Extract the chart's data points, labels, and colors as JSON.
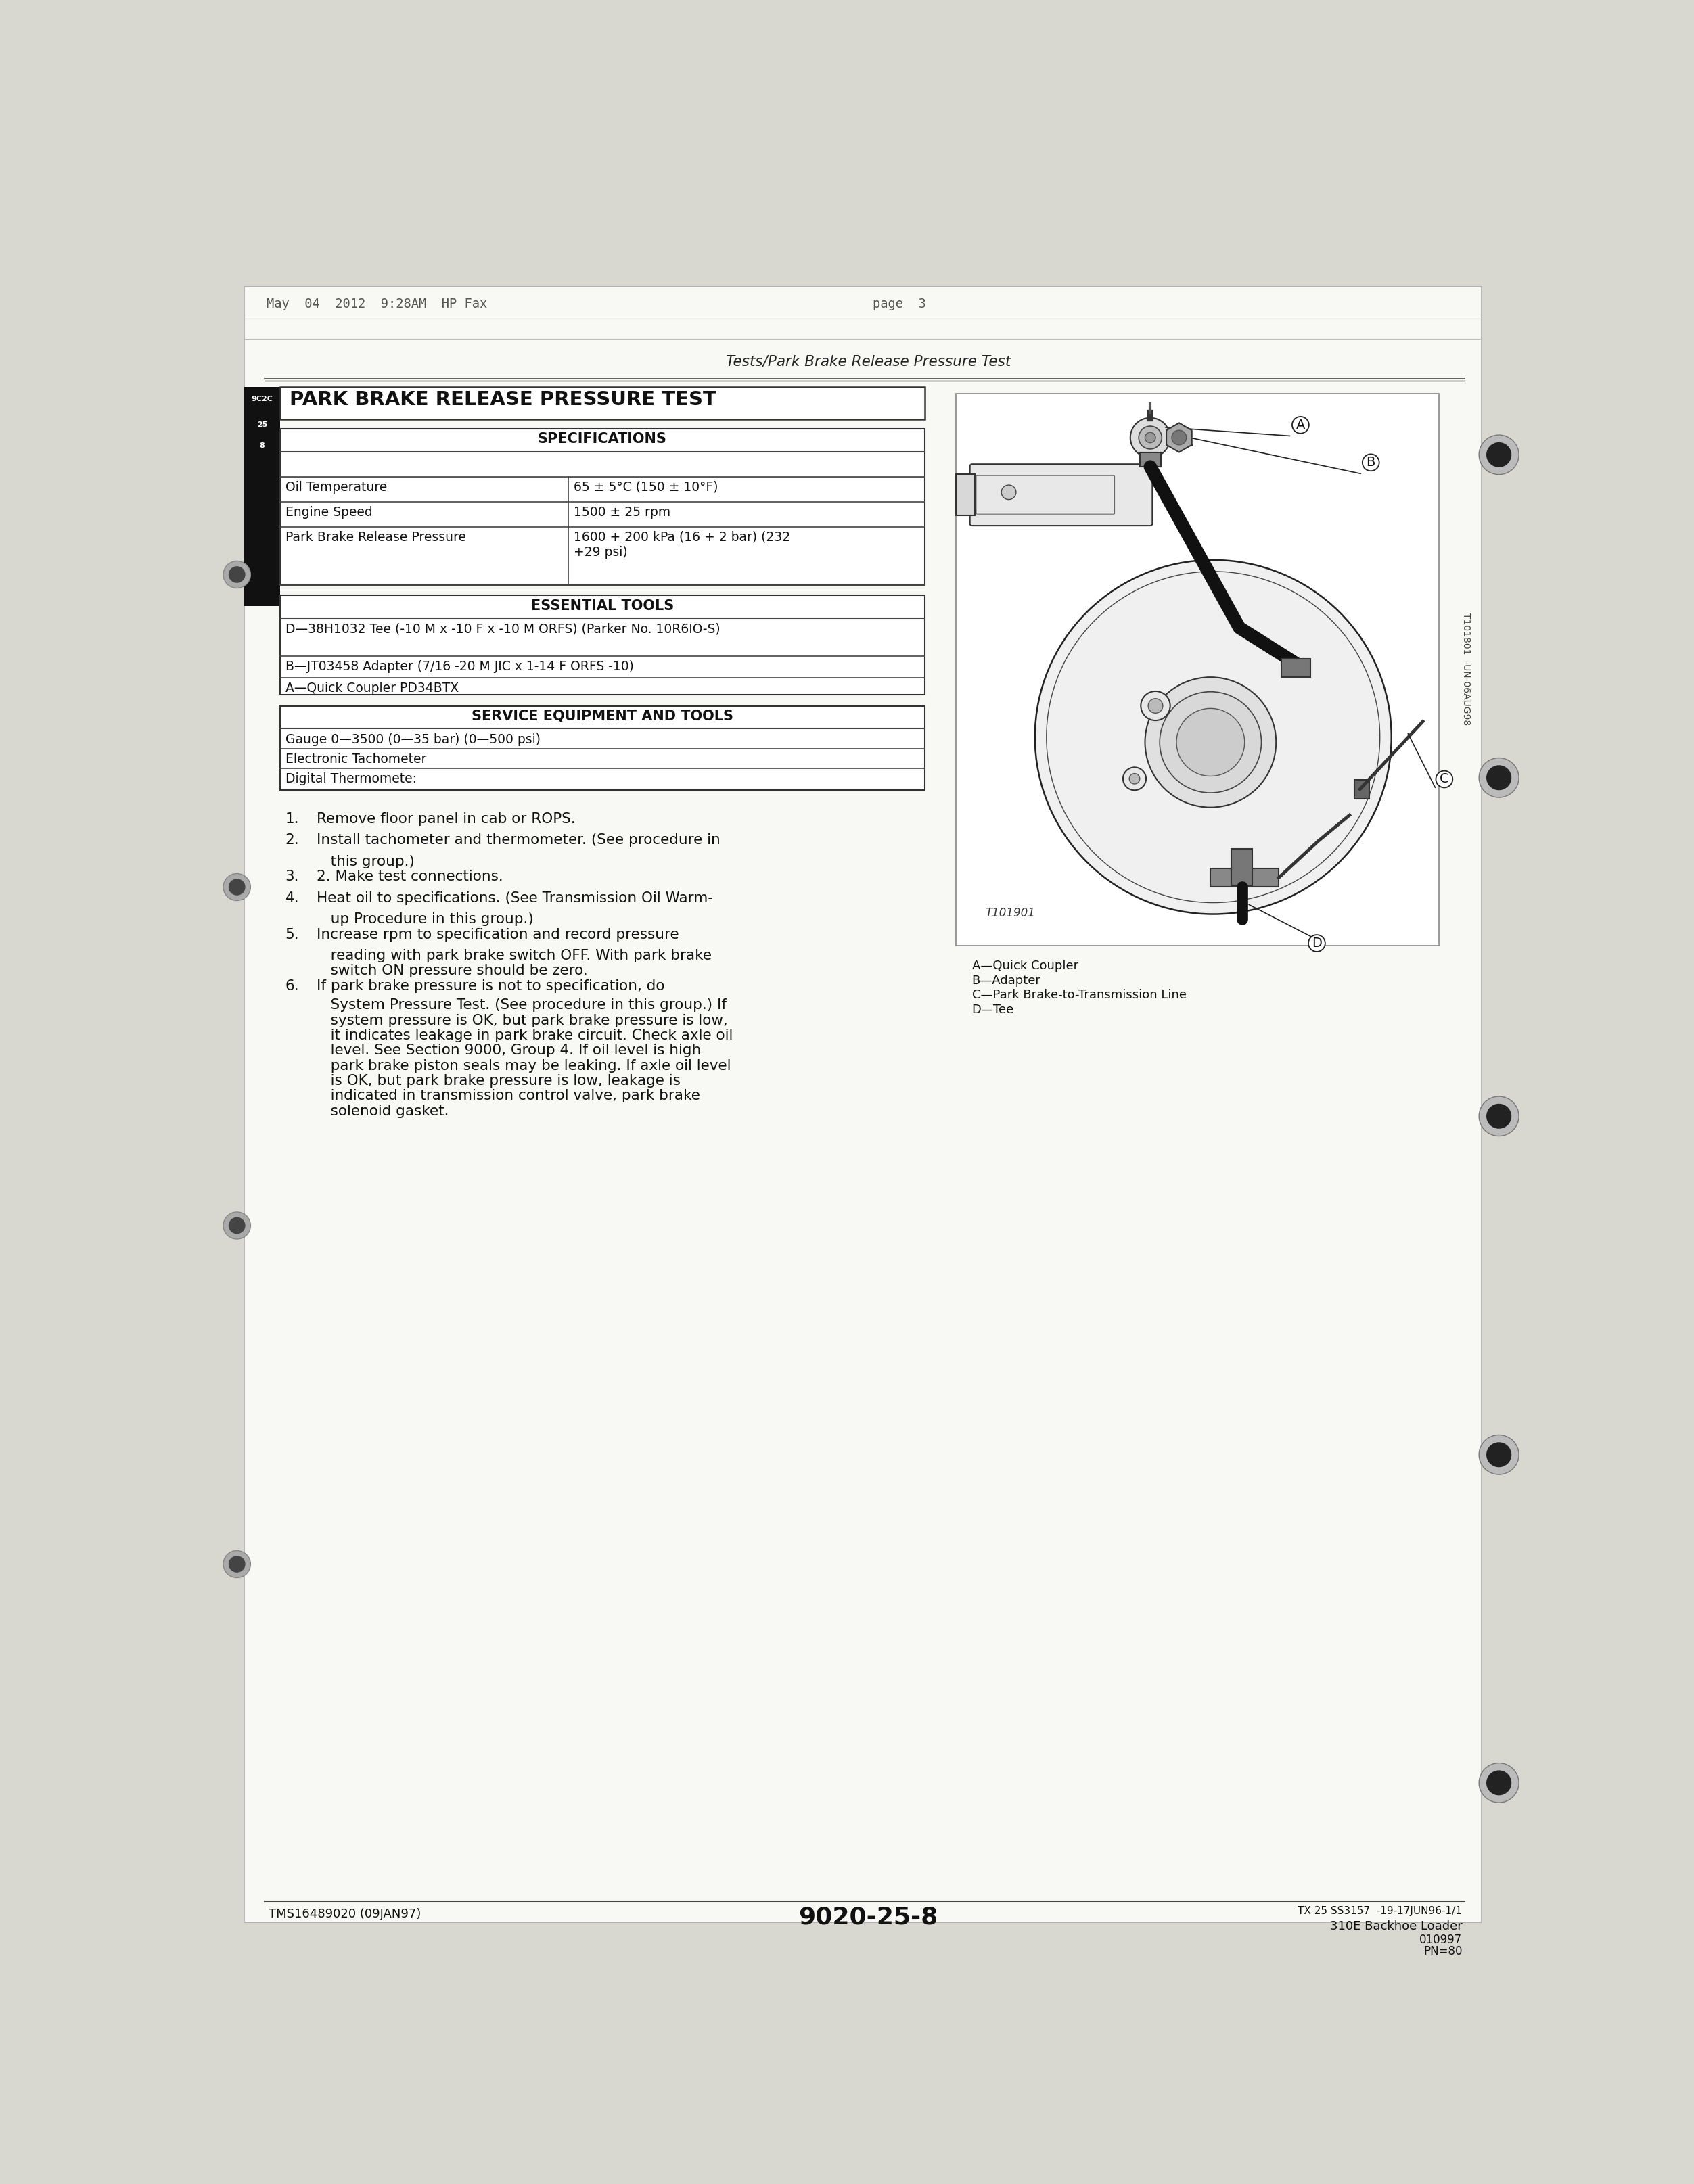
{
  "page_header_left": "May  04  2012  9:28AM  HP Fax",
  "page_header_right": "page  3",
  "section_title": "Tests/Park Brake Release Pressure Test",
  "main_title": "PARK BRAKE RELEASE PRESSURE TEST",
  "spec_header": "SPECIFICATIONS",
  "spec_rows": [
    [
      "Oil Temperature",
      "65 ± 5°C (150 ± 10°F)"
    ],
    [
      "Engine Speed",
      "1500 ± 25 rpm"
    ],
    [
      "Park Brake Release Pressure",
      "1600 + 200 kPa (16 + 2 bar) (232\n+29 psi)"
    ]
  ],
  "tools_header": "ESSENTIAL TOOLS",
  "tools_rows": [
    [
      "D—38H1032 Tee (-10 M x -10 F x -10 M ORFS) (Parker No. 10R6IO-",
      "S)"
    ],
    [
      "B—JT03458 Adapter (7/16 -20 M JIC x 1-14 F ORFS -10)",
      ""
    ],
    [
      "A—Quick Coupler PD34BTX",
      ""
    ]
  ],
  "service_header": "SERVICE EQUIPMENT AND TOOLS",
  "service_rows": [
    "Gauge 0—3500 (0—35 bar) (0—500 psi)",
    "Electronic Tachometer",
    "Digital Thermomete:"
  ],
  "steps": [
    {
      "num": "1.",
      "text": "Remove floor panel in cab or ROPS."
    },
    {
      "num": "2.",
      "text": "Install tachometer and thermometer. (See procedure in\n    this group.)"
    },
    {
      "num": "3.",
      "text": "2. Make test connections."
    },
    {
      "num": "4.",
      "text": "Heat oil to specifications. (See Transmission Oil Warm-\n    up Procedure in this group.)"
    },
    {
      "num": "5.",
      "text": "Increase rpm to specification and record pressure\n    reading with park brake switch OFF. With park brake\n    switch ON pressure should be zero."
    },
    {
      "num": "6.",
      "text": "If park brake pressure is not to specification, do\n    System Pressure Test. (See procedure in this group.) If\n    system pressure is OK, but park brake pressure is low,\n    it indicates leakage in park brake circuit. Check axle oil\n    level. See Section 9000, Group 4. If oil level is high\n    park brake piston seals may be leaking. If axle oil level\n    is OK, but park brake pressure is low, leakage is\n    indicated in transmission control valve, park brake\n    solenoid gasket."
    }
  ],
  "diagram_caption_label": "T101901",
  "diagram_side_label": "T101801  -UN-06AUG98",
  "diagram_labels": [
    "A—Quick Coupler",
    "B—Adapter",
    "C—Park Brake-to-Transmission Line",
    "D—Tee"
  ],
  "footer_left": "TMS16489020 (09JAN97)",
  "footer_center": "9020-25-8",
  "footer_right1": "TX 25 SS3157  -19-17JUN96-1/1",
  "footer_right2": "310E Backhoe Loader",
  "footer_right3": "010997",
  "footer_right4": "PN=80",
  "bg_color": "#d8d8d0",
  "page_bg": "#f8f8f4",
  "text_color": "#111111"
}
